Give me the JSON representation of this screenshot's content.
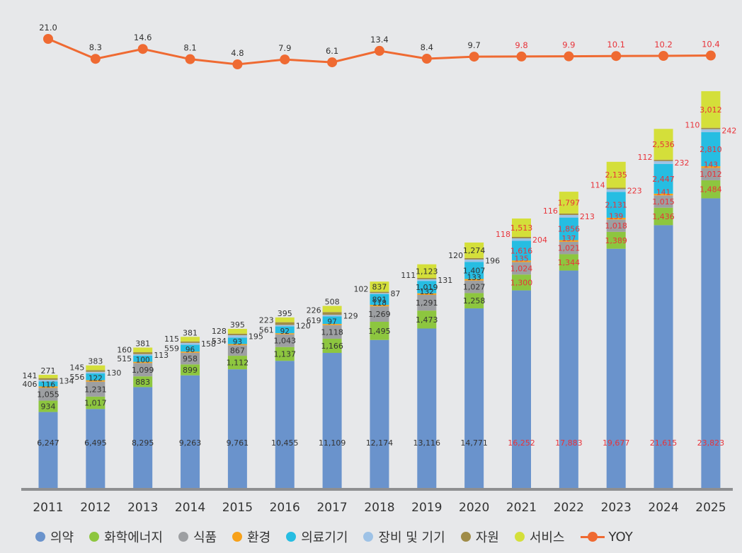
{
  "chart_data": {
    "type": "bar",
    "stacked": true,
    "categories": [
      "2011",
      "2012",
      "2013",
      "2014",
      "2015",
      "2016",
      "2017",
      "2018",
      "2019",
      "2020",
      "2021",
      "2022",
      "2023",
      "2024",
      "2025"
    ],
    "projected_from": "2021",
    "series": [
      {
        "name": "의약",
        "color": "#6a93cc",
        "values": [
          6247,
          6495,
          8295,
          9263,
          9761,
          10455,
          11109,
          12174,
          13116,
          14771,
          16252,
          17883,
          19677,
          21615,
          23823
        ]
      },
      {
        "name": "화학에너지",
        "color": "#8dc63f",
        "values": [
          934,
          1017,
          883,
          899,
          1112,
          1137,
          1166,
          1495,
          1473,
          1258,
          1300,
          1344,
          1389,
          1436,
          1484
        ]
      },
      {
        "name": "식품",
        "color": "#9d9fa2",
        "values": [
          1055,
          1231,
          1099,
          958,
          867,
          1043,
          1118,
          1269,
          1291,
          1027,
          1024,
          1021,
          1018,
          1015,
          1012
        ]
      },
      {
        "name": "환경",
        "color": "#f7a11a",
        "values": [
          116,
          122,
          100,
          96,
          93,
          92,
          97,
          118,
          132,
          133,
          135,
          137,
          139,
          141,
          143
        ]
      },
      {
        "name": "의료기기",
        "color": "#26bde2",
        "values": [
          406,
          556,
          515,
          559,
          534,
          561,
          619,
          891,
          1019,
          1407,
          1616,
          1856,
          2131,
          2447,
          2810
        ]
      },
      {
        "name": "장비 및 기기",
        "color": "#9ec2e6",
        "values": [
          134,
          130,
          113,
          158,
          195,
          120,
          129,
          87,
          131,
          196,
          204,
          213,
          223,
          232,
          242
        ]
      },
      {
        "name": "자원",
        "color": "#a08c48",
        "values": [
          141,
          145,
          160,
          115,
          128,
          223,
          226,
          102,
          111,
          120,
          118,
          116,
          114,
          112,
          110
        ]
      },
      {
        "name": "서비스",
        "color": "#d4df3a",
        "values": [
          271,
          383,
          381,
          381,
          395,
          395,
          508,
          837,
          1123,
          1274,
          1513,
          1797,
          2135,
          2536,
          3012
        ]
      }
    ],
    "yoy": {
      "name": "YOY",
      "color": "#ef6a32",
      "values": [
        21.0,
        8.3,
        14.6,
        8.1,
        4.8,
        7.9,
        6.1,
        13.4,
        8.4,
        9.7,
        9.8,
        9.9,
        10.1,
        10.2,
        10.4
      ],
      "labels": [
        "21.0",
        "8.3",
        "14.6",
        "8.1",
        "4.8",
        "7.9",
        "6.1",
        "13.4",
        "8.4",
        "9.7",
        "9.8",
        "9.9",
        "10.1",
        "10.2",
        "10.4"
      ]
    },
    "value_labels": {
      "의약": [
        "6,247",
        "6,495",
        "8,295",
        "9,263",
        "9,761",
        "10,455",
        "11,109",
        "12,174",
        "13,116",
        "14,771",
        "16,252",
        "17,883",
        "19,677",
        "21,615",
        "23,823"
      ],
      "화학에너지": [
        "934",
        "1,017",
        "883",
        "899",
        "1,112",
        "1,137",
        "1,166",
        "1,495",
        "1,473",
        "1,258",
        "1,300",
        "1,344",
        "1,389",
        "1,436",
        "1,484"
      ],
      "식품": [
        "1,055",
        "1,231",
        "1,099",
        "958",
        "867",
        "1,043",
        "1,118",
        "1,269",
        "1,291",
        "1,027",
        "1,024",
        "1,021",
        "1,018",
        "1,015",
        "1,012"
      ],
      "환경": [
        "116",
        "122",
        "100",
        "96",
        "93",
        "92",
        "97",
        "118",
        "132",
        "133",
        "135",
        "137",
        "139",
        "141",
        "143"
      ],
      "의료기기": [
        "406",
        "556",
        "515",
        "559",
        "534",
        "561",
        "619",
        "891",
        "1,019",
        "1,407",
        "1,616",
        "1,856",
        "2,131",
        "2,447",
        "2,810"
      ],
      "장비 및 기기": [
        "134",
        "130",
        "113",
        "158",
        "195",
        "120",
        "129",
        "87",
        "131",
        "196",
        "204",
        "213",
        "223",
        "232",
        "242"
      ],
      "자원": [
        "141",
        "145",
        "160",
        "115",
        "128",
        "223",
        "226",
        "102",
        "111",
        "120",
        "118",
        "116",
        "114",
        "112",
        "110"
      ],
      "서비스": [
        "271",
        "383",
        "381",
        "381",
        "395",
        "395",
        "508",
        "837",
        "1,123",
        "1,274",
        "1,513",
        "1,797",
        "2,135",
        "2,536",
        "3,012"
      ]
    },
    "label_colors": {
      "actual": "#333333",
      "projected": "#e8333a"
    },
    "legend_position": "bottom",
    "grid": false,
    "title": "",
    "xlabel": "",
    "ylabel": ""
  },
  "legend": {
    "items": [
      {
        "label": "의약",
        "color": "#6a93cc"
      },
      {
        "label": "화학에너지",
        "color": "#8dc63f"
      },
      {
        "label": "식품",
        "color": "#9d9fa2"
      },
      {
        "label": "환경",
        "color": "#f7a11a"
      },
      {
        "label": "의료기기",
        "color": "#26bde2"
      },
      {
        "label": "장비 및 기기",
        "color": "#9ec2e6"
      },
      {
        "label": "자원",
        "color": "#a08c48"
      },
      {
        "label": "서비스",
        "color": "#d4df3a"
      }
    ],
    "yoy_label": "YOY",
    "yoy_color": "#ef6a32"
  }
}
